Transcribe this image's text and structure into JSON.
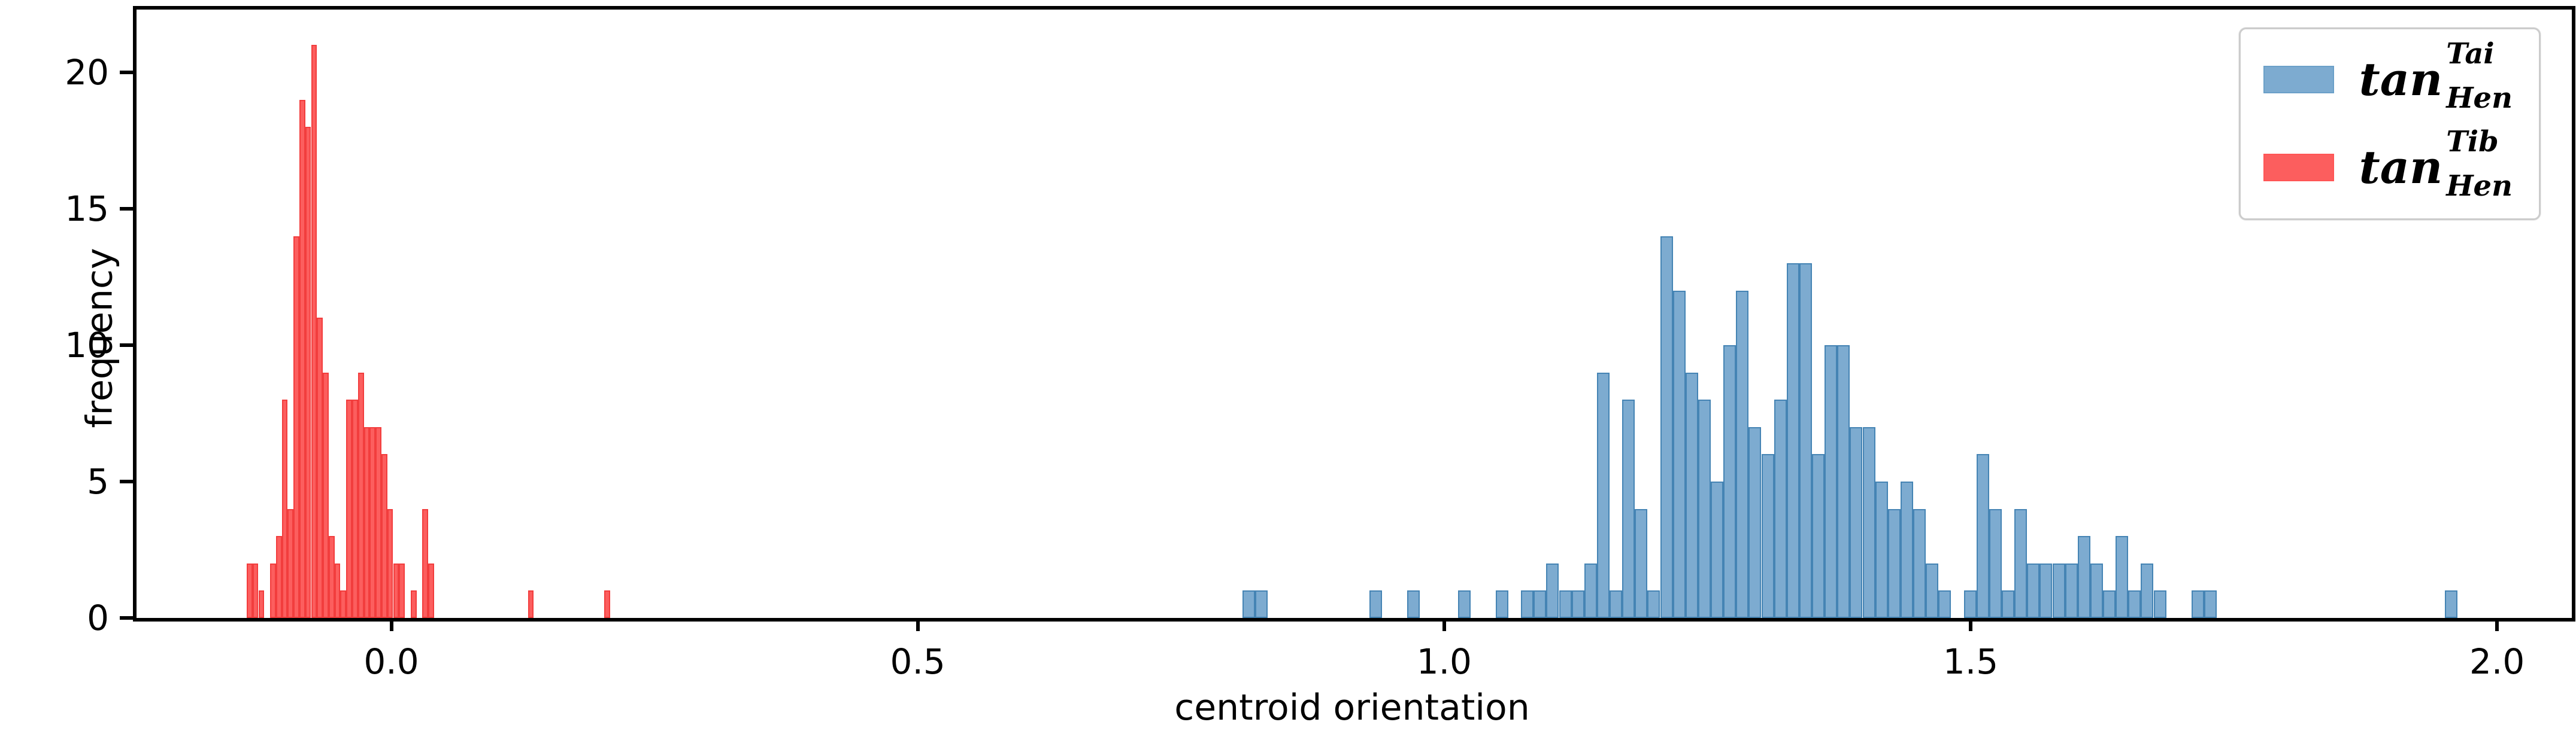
{
  "colors": {
    "blue_fill": "#7dabd0",
    "blue_edge": "#4584b4",
    "red_fill": "#fc5e5e",
    "red_edge": "#f23d3d",
    "spine": "#000000",
    "legend_border": "#cccccc"
  },
  "chart_data": {
    "type": "bar",
    "subtype": "histogram",
    "title": "",
    "xlabel": "centroid orientation",
    "ylabel": "frequency",
    "xlim": [
      -0.242,
      2.071
    ],
    "ylim": [
      0,
      22.3
    ],
    "grid": false,
    "legend_position": "upper right",
    "x_ticks": [
      0.0,
      0.5,
      1.0,
      1.5,
      2.0
    ],
    "x_tick_labels": [
      "0.0",
      "0.5",
      "1.0",
      "1.5",
      "2.0"
    ],
    "y_ticks": [
      0,
      5,
      10,
      15,
      20
    ],
    "y_tick_labels": [
      "0",
      "5",
      "10",
      "15",
      "20"
    ],
    "series": [
      {
        "id": "blue",
        "label_base": "tan",
        "label_sup": "Tai",
        "label_sub": "Hen",
        "fill": "#7dabd0",
        "edge": "#4584b4",
        "bin_start": 0.8086,
        "bin_width": 0.012016,
        "counts": [
          1,
          1,
          0,
          0,
          0,
          0,
          0,
          0,
          0,
          0,
          1,
          0,
          0,
          1,
          0,
          0,
          0,
          1,
          0,
          0,
          1,
          0,
          1,
          1,
          2,
          1,
          1,
          2,
          9,
          1,
          8,
          4,
          1,
          14,
          12,
          9,
          8,
          5,
          10,
          12,
          7,
          6,
          8,
          13,
          13,
          6,
          10,
          10,
          7,
          7,
          5,
          4,
          5,
          4,
          2,
          1,
          0,
          1,
          6,
          4,
          1,
          4,
          2,
          2,
          2,
          2,
          3,
          2,
          1,
          3,
          1,
          2,
          1,
          0,
          0,
          1,
          1,
          0,
          0,
          0,
          0,
          0,
          0,
          0,
          0,
          0,
          0,
          0,
          0,
          0,
          0,
          0,
          0,
          0,
          0,
          1
        ]
      },
      {
        "id": "red",
        "label_base": "tan",
        "label_sup": "Tib",
        "label_sub": "Hen",
        "fill": "#fc5e5e",
        "edge": "#f23d3d",
        "bin_start": -0.13742,
        "bin_width": 0.005565,
        "counts": [
          2,
          2,
          1,
          0,
          2,
          3,
          8,
          4,
          14,
          19,
          18,
          21,
          11,
          9,
          3,
          2,
          1,
          8,
          8,
          9,
          7,
          7,
          7,
          6,
          4,
          2,
          2,
          0,
          1,
          0,
          4,
          2,
          0,
          0,
          0,
          0,
          0,
          0,
          0,
          0,
          0,
          0,
          0,
          0,
          0,
          0,
          0,
          0,
          1,
          0,
          0,
          0,
          0,
          0,
          0,
          0,
          0,
          0,
          0,
          0,
          0,
          1
        ]
      }
    ],
    "legend_entries": [
      {
        "base": "tan",
        "sup": "Tai",
        "sub": "Hen",
        "series": "blue"
      },
      {
        "base": "tan",
        "sup": "Tib",
        "sub": "Hen",
        "series": "red"
      }
    ]
  }
}
